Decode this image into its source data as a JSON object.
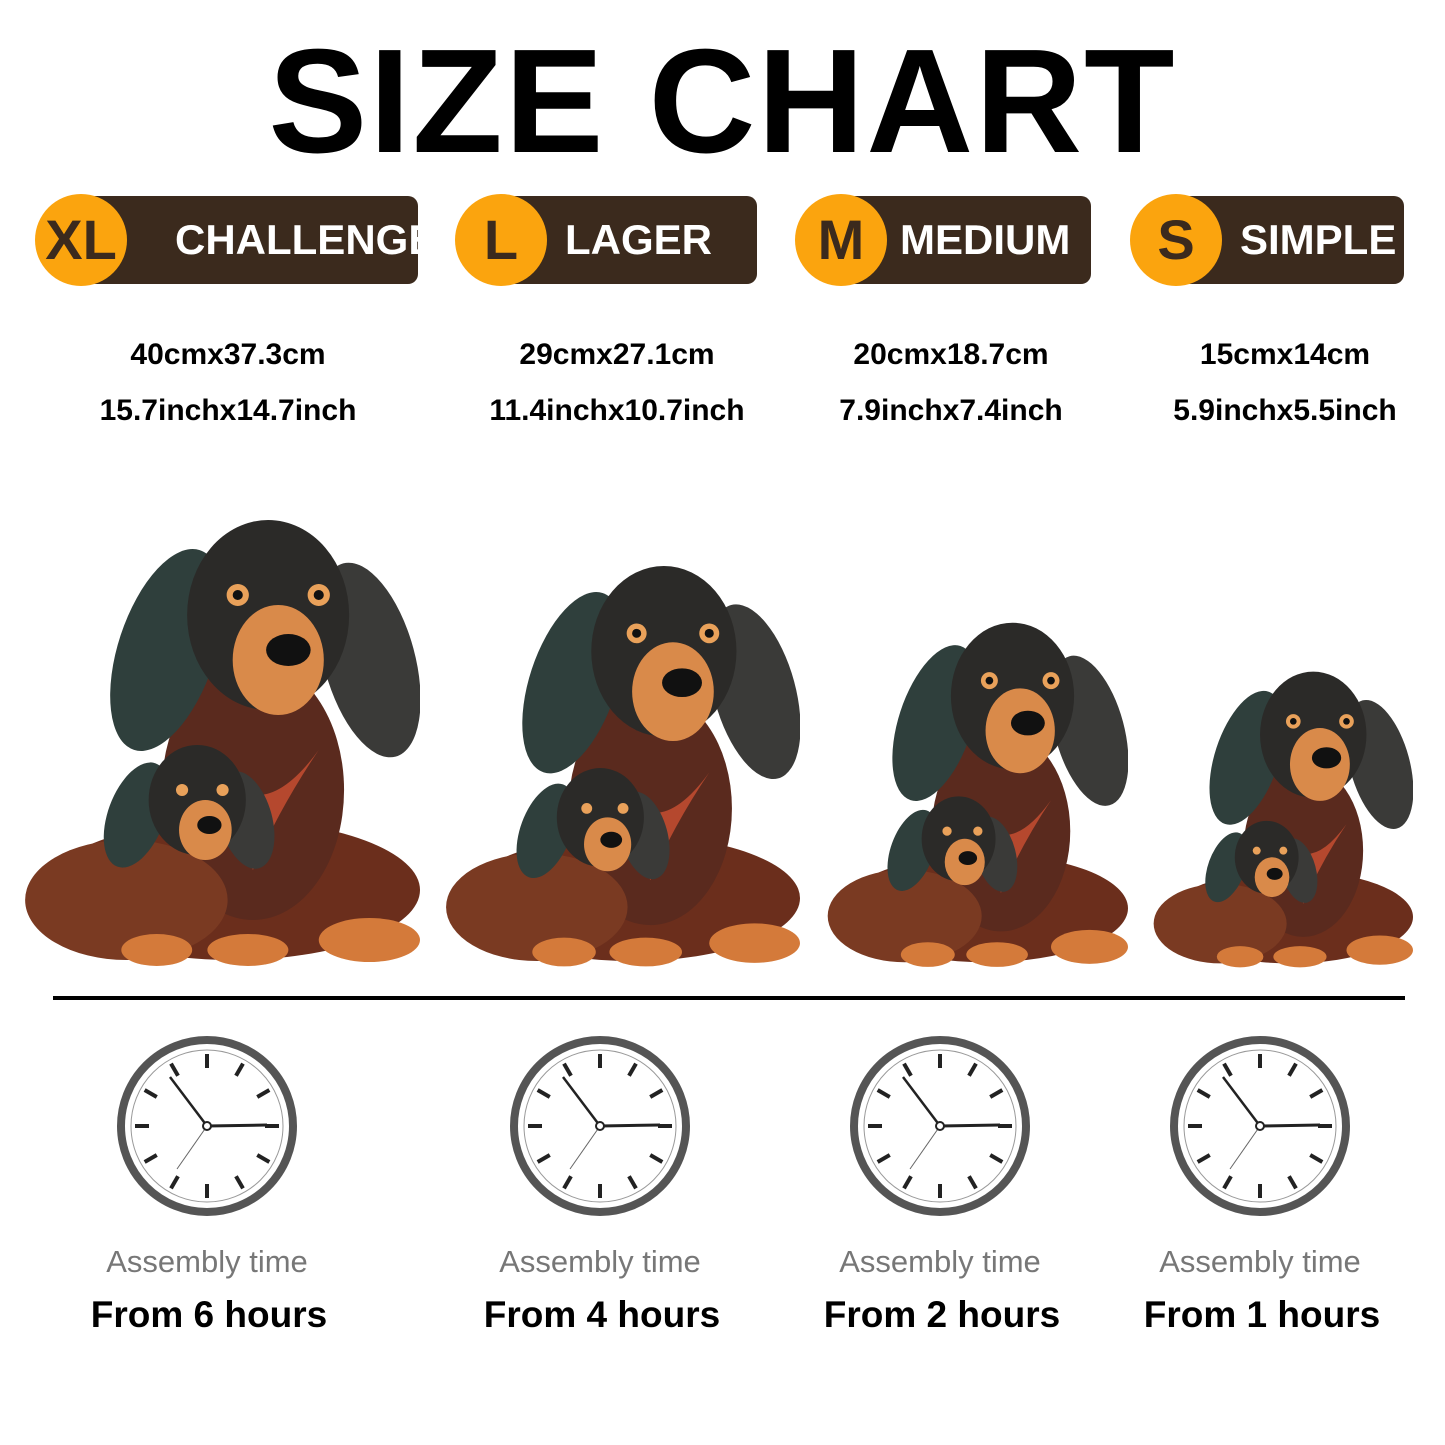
{
  "title": "SIZE CHART",
  "colors": {
    "badge_circle": "#fba40e",
    "badge_bar": "#3b2a1d",
    "assembly_label": "#777777"
  },
  "sizes": [
    {
      "code": "XL",
      "name": "CHALLENGE",
      "metric": "40cmx37.3cm",
      "imperial": "15.7inchx14.7inch",
      "assembly_label": "Assembly time",
      "assembly_time": "From 6 hours"
    },
    {
      "code": "L",
      "name": "LAGER",
      "metric": "29cmx27.1cm",
      "imperial": "11.4inchx10.7inch",
      "assembly_label": "Assembly time",
      "assembly_time": "From 4 hours"
    },
    {
      "code": "M",
      "name": "MEDIUM",
      "metric": "20cmx18.7cm",
      "imperial": "7.9inchx7.4inch",
      "assembly_label": "Assembly time",
      "assembly_time": "From 2 hours"
    },
    {
      "code": "S",
      "name": "SIMPLE",
      "metric": "15cmx14cm",
      "imperial": "5.9inchx5.5inch",
      "assembly_label": "Assembly time",
      "assembly_time": "From 1 hours"
    }
  ],
  "images": {
    "product": "dachshund-mother-and-puppy-wooden-puzzle",
    "icon": "clock-icon"
  }
}
